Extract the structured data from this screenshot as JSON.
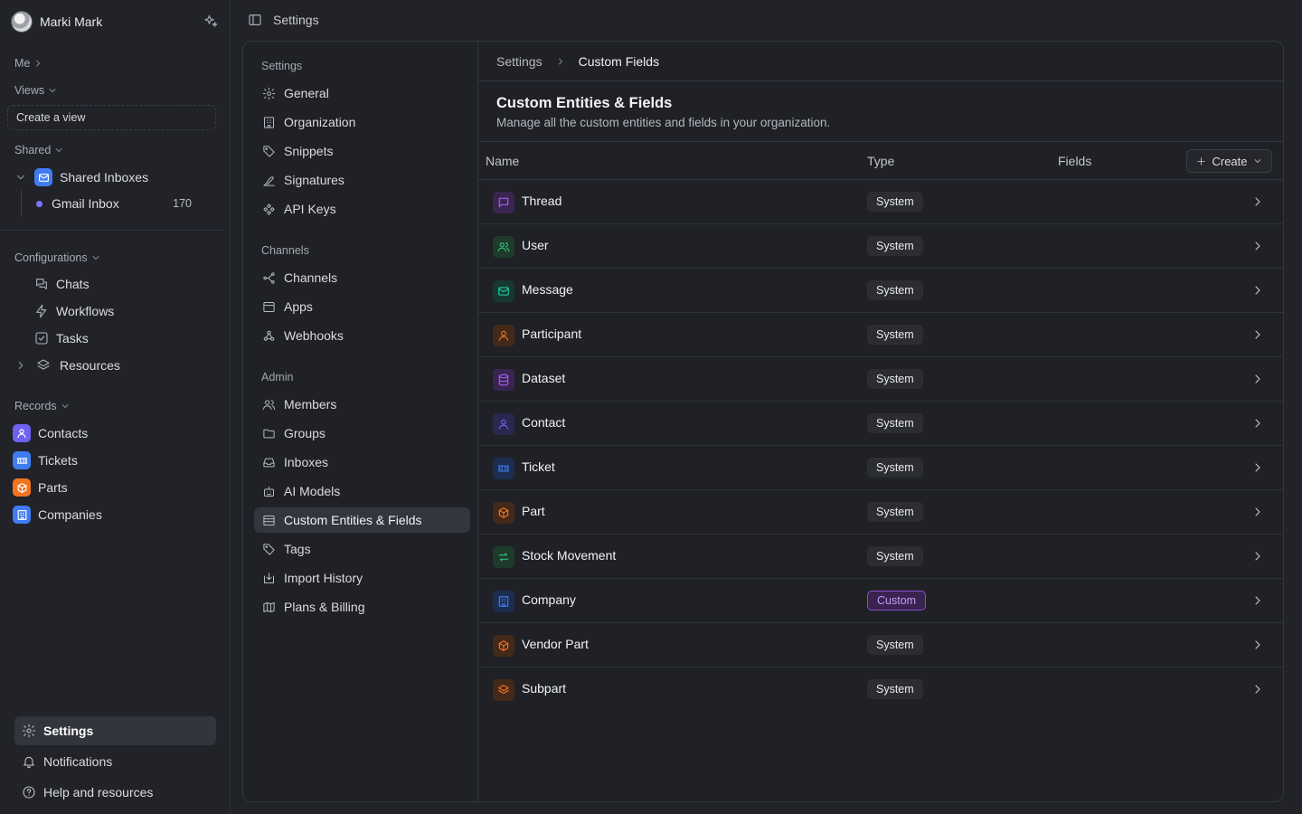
{
  "user": {
    "name": "Marki Mark"
  },
  "sidebar": {
    "me_label": "Me",
    "views_label": "Views",
    "create_view_label": "Create a view",
    "shared_label": "Shared",
    "shared_inboxes_label": "Shared Inboxes",
    "gmail_inbox_label": "Gmail Inbox",
    "gmail_inbox_count": "170",
    "configurations_label": "Configurations",
    "configurations": [
      {
        "label": "Chats",
        "icon": "chats-icon"
      },
      {
        "label": "Workflows",
        "icon": "bolt-icon"
      },
      {
        "label": "Tasks",
        "icon": "checkbox-icon"
      }
    ],
    "resources_label": "Resources",
    "records_label": "Records",
    "records": [
      {
        "label": "Contacts",
        "color": "#6e62f2"
      },
      {
        "label": "Tickets",
        "color": "#3f7cf2"
      },
      {
        "label": "Parts",
        "color": "#f2741f"
      },
      {
        "label": "Companies",
        "color": "#3f7cf2"
      }
    ],
    "bottom": {
      "settings_label": "Settings",
      "notifications_label": "Notifications",
      "help_label": "Help and resources"
    }
  },
  "topbar": {
    "title": "Settings"
  },
  "settings_nav": {
    "group_settings": "Settings",
    "settings_items": [
      "General",
      "Organization",
      "Snippets",
      "Signatures",
      "API Keys"
    ],
    "group_channels": "Channels",
    "channels_items": [
      "Channels",
      "Apps",
      "Webhooks"
    ],
    "group_admin": "Admin",
    "admin_items": [
      "Members",
      "Groups",
      "Inboxes",
      "AI Models",
      "Custom Entities & Fields",
      "Tags",
      "Import History",
      "Plans & Billing"
    ]
  },
  "breadcrumb": {
    "parent": "Settings",
    "current": "Custom Fields"
  },
  "page": {
    "title": "Custom Entities & Fields",
    "subtitle": "Manage all the custom entities and fields in your organization."
  },
  "table": {
    "col_name": "Name",
    "col_type": "Type",
    "col_fields": "Fields",
    "create_label": "Create",
    "rows": [
      {
        "name": "Thread",
        "type": "System",
        "color": "#a55cf5"
      },
      {
        "name": "User",
        "type": "System",
        "color": "#2fbf71"
      },
      {
        "name": "Message",
        "type": "System",
        "color": "#21c8a6"
      },
      {
        "name": "Participant",
        "type": "System",
        "color": "#f2741f"
      },
      {
        "name": "Dataset",
        "type": "System",
        "color": "#a55cf5"
      },
      {
        "name": "Contact",
        "type": "System",
        "color": "#6e62f2"
      },
      {
        "name": "Ticket",
        "type": "System",
        "color": "#3f7cf2"
      },
      {
        "name": "Part",
        "type": "System",
        "color": "#f2741f"
      },
      {
        "name": "Stock Movement",
        "type": "System",
        "color": "#2fbf71"
      },
      {
        "name": "Company",
        "type": "Custom",
        "color": "#3f7cf2"
      },
      {
        "name": "Vendor Part",
        "type": "System",
        "color": "#f2741f"
      },
      {
        "name": "Subpart",
        "type": "System",
        "color": "#f2741f"
      }
    ]
  }
}
